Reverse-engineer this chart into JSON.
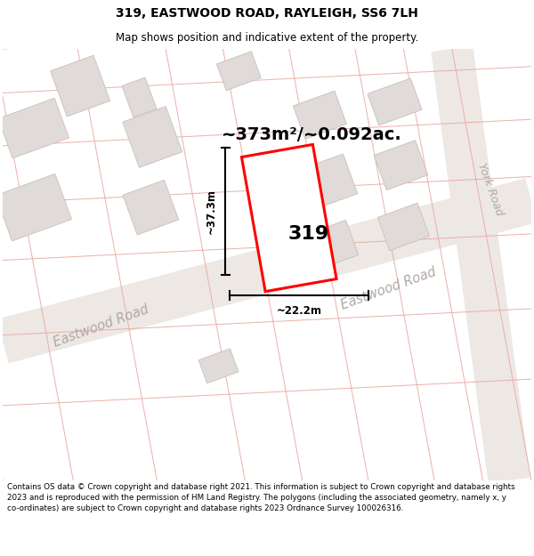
{
  "title": "319, EASTWOOD ROAD, RAYLEIGH, SS6 7LH",
  "subtitle": "Map shows position and indicative extent of the property.",
  "area_label": "~373m²/~0.092ac.",
  "property_number": "319",
  "dim_width": "~22.2m",
  "dim_height": "~37.3m",
  "road_label_left": "Eastwood Road",
  "road_label_right": "Eastwood Road",
  "york_road_label": "York Road",
  "copyright_text": "Contains OS data © Crown copyright and database right 2021. This information is subject to Crown copyright and database rights 2023 and is reproduced with the permission of HM Land Registry. The polygons (including the associated geometry, namely x, y co-ordinates) are subject to Crown copyright and database rights 2023 Ordnance Survey 100026316.",
  "map_bg": "#f9f7f5",
  "road_fill": "#ede8e4",
  "parcel_line_color": "#e8a8a0",
  "building_fill": "#e0dbd8",
  "building_edge": "#c8c0bc",
  "plot_outline_color": "#ff0000",
  "plot_lw": 2.2,
  "road_label_color": "#b0a8a4",
  "york_road_color": "#b0a8a4",
  "dim_line_color": "#000000",
  "text_color": "#000000"
}
